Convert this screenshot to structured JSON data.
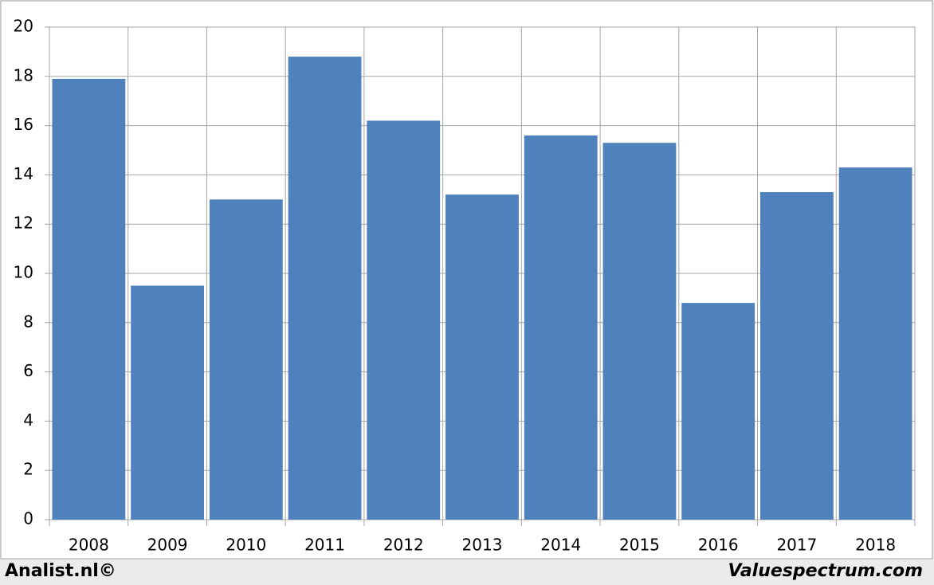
{
  "chart_data": {
    "type": "bar",
    "categories": [
      "2008",
      "2009",
      "2010",
      "2011",
      "2012",
      "2013",
      "2014",
      "2015",
      "2016",
      "2017",
      "2018"
    ],
    "values": [
      17.9,
      9.5,
      13.0,
      18.8,
      16.2,
      13.2,
      15.6,
      15.3,
      8.8,
      13.3,
      14.3
    ],
    "color": "#4f81bd",
    "ylim": [
      0,
      20
    ],
    "yticks": [
      0,
      2,
      4,
      6,
      8,
      10,
      12,
      14,
      16,
      18,
      20
    ],
    "grid": true,
    "footer_left": "Analist.nl©",
    "footer_right": "Valuespectrum.com"
  }
}
